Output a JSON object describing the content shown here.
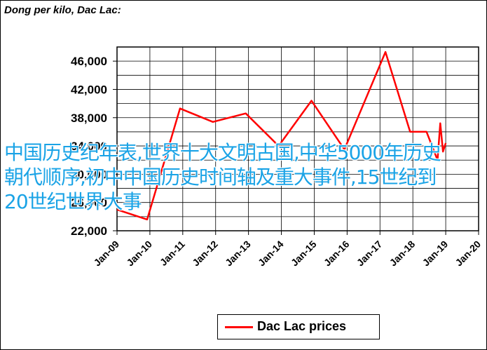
{
  "chart_data": {
    "type": "line",
    "title": "Dong per kilo, Dac Lac:",
    "xlabel": "",
    "ylabel": "",
    "x_ticks": [
      "Jan-09",
      "Jan-10",
      "Jan-11",
      "Jan-12",
      "Jan-13",
      "Jan-14",
      "Jan-15",
      "Jan-16",
      "Jan-17",
      "Jan-18",
      "Jan-19",
      "Jan-20"
    ],
    "y_ticks": [
      "22,000",
      "26,000",
      "30,000",
      "34,000",
      "38,000",
      "42,000",
      "46,000"
    ],
    "ylim": [
      22000,
      48000
    ],
    "grid": true,
    "legend_position": "bottom",
    "series": [
      {
        "name": "Dac Lac prices",
        "color": "#ff0000",
        "points": [
          {
            "x": "2009-01",
            "y": 25000
          },
          {
            "x": "2009-12",
            "y": 23600
          },
          {
            "x": "2010-12",
            "y": 39300
          },
          {
            "x": "2011-12",
            "y": 37400
          },
          {
            "x": "2012-12",
            "y": 38600
          },
          {
            "x": "2013-12",
            "y": 34000
          },
          {
            "x": "2014-12",
            "y": 40400
          },
          {
            "x": "2015-12",
            "y": 33500
          },
          {
            "x": "2017-03",
            "y": 47300
          },
          {
            "x": "2017-12",
            "y": 36000
          },
          {
            "x": "2018-06",
            "y": 36000
          },
          {
            "x": "2018-10",
            "y": 32000
          },
          {
            "x": "2018-11",
            "y": 37200
          },
          {
            "x": "2018-12",
            "y": 33200
          },
          {
            "x": "2019-01",
            "y": 34400
          }
        ]
      }
    ]
  },
  "overlay_text": "中国历史纪年表,世界十大文明古国,中华5000年历史朝代顺序,初中中国历史时间轴及重大事件,15世纪到20世纪世界大事"
}
